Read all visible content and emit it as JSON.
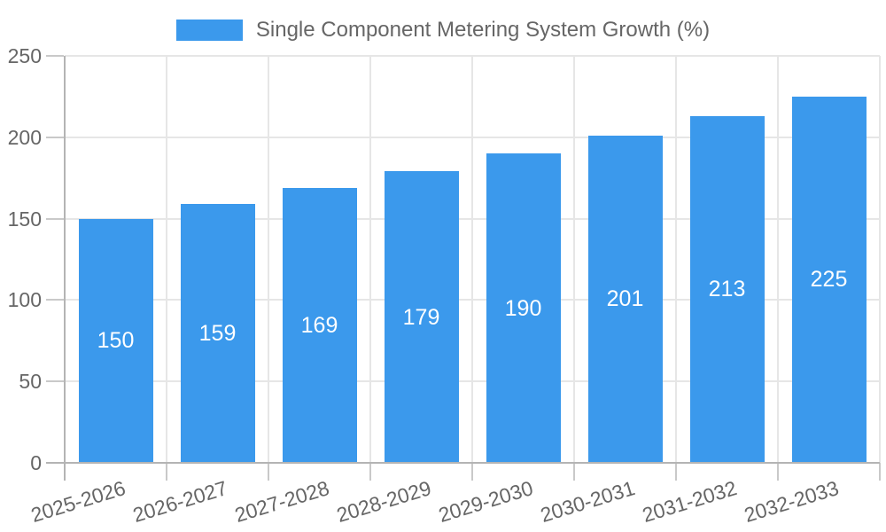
{
  "chart_data": {
    "type": "bar",
    "title": "Single Component Metering System Growth (%)",
    "categories": [
      "2025-2026",
      "2026-2027",
      "2027-2028",
      "2028-2029",
      "2029-2030",
      "2030-2031",
      "2031-2032",
      "2032-2033"
    ],
    "values": [
      150,
      159,
      169,
      179,
      190,
      201,
      213,
      225
    ],
    "xlabel": "",
    "ylabel": "",
    "ylim": [
      0,
      250
    ],
    "ytick_step": 50,
    "yticks": [
      0,
      50,
      100,
      150,
      200,
      250
    ],
    "grid": true,
    "legend_position": "top",
    "value_labels": {
      "position": "center-of-bar",
      "color": "#ffffff"
    },
    "colors": {
      "bar": "#3B99EC",
      "axis_text": "#666666",
      "bar_label_text": "#FFFFFF",
      "grid_line": "#E6E6E6",
      "axis_line": "#B4B4B4",
      "tick_mark": "#C9C9C9",
      "background": "#FFFFFF"
    }
  }
}
